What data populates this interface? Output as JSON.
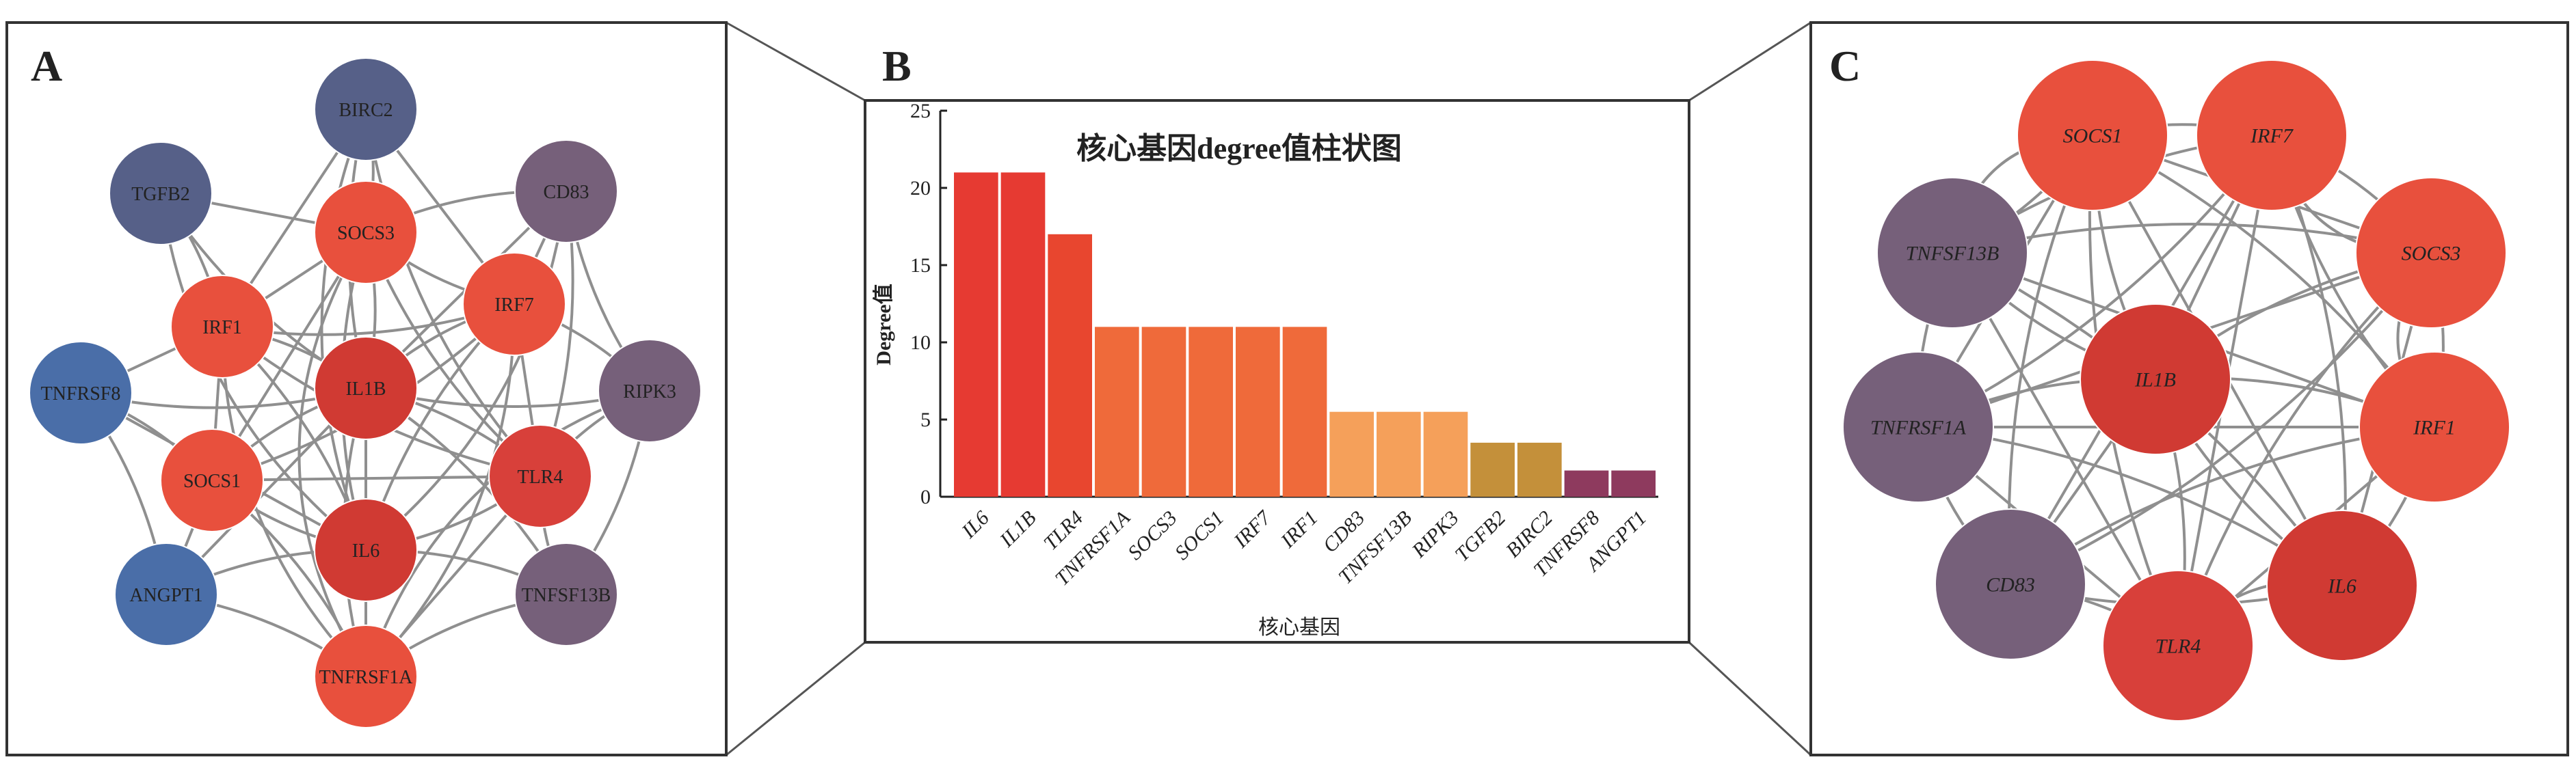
{
  "panels": {
    "A": {
      "label": "A",
      "nodes": [
        {
          "id": "BIRC2",
          "label": "BIRC2",
          "color": "#566088"
        },
        {
          "id": "TGFB2",
          "label": "TGFB2",
          "color": "#566088"
        },
        {
          "id": "CD83",
          "label": "CD83",
          "color": "#76607a"
        },
        {
          "id": "SOCS3",
          "label": "SOCS3",
          "color": "#e8503d"
        },
        {
          "id": "IRF1",
          "label": "IRF1",
          "color": "#e8503d"
        },
        {
          "id": "IRF7",
          "label": "IRF7",
          "color": "#e8503d"
        },
        {
          "id": "IL1B",
          "label": "IL1B",
          "color": "#d03a33"
        },
        {
          "id": "RIPK3",
          "label": "RIPK3",
          "color": "#76607a"
        },
        {
          "id": "TNFRSF8",
          "label": "TNFRSF8",
          "color": "#4a6ea8"
        },
        {
          "id": "SOCS1",
          "label": "SOCS1",
          "color": "#e8503d"
        },
        {
          "id": "TLR4",
          "label": "TLR4",
          "color": "#d8403a"
        },
        {
          "id": "IL6",
          "label": "IL6",
          "color": "#d03a33"
        },
        {
          "id": "ANGPT1",
          "label": "ANGPT1",
          "color": "#4a6ea8"
        },
        {
          "id": "TNFSF13B",
          "label": "TNFSF13B",
          "color": "#76607a"
        },
        {
          "id": "TNFRSF1A",
          "label": "TNFRSF1A",
          "color": "#e8503d"
        }
      ]
    },
    "B": {
      "label": "B"
    },
    "C": {
      "label": "C",
      "nodes": [
        {
          "id": "SOCS1",
          "label": "SOCS1",
          "color": "#e8503d"
        },
        {
          "id": "IRF7",
          "label": "IRF7",
          "color": "#e8503d"
        },
        {
          "id": "TNFSF13B",
          "label": "TNFSF13B",
          "color": "#76607a"
        },
        {
          "id": "SOCS3",
          "label": "SOCS3",
          "color": "#e8503d"
        },
        {
          "id": "IL1B",
          "label": "IL1B",
          "color": "#d03a33"
        },
        {
          "id": "TNFRSF1A",
          "label": "TNFRSF1A",
          "color": "#76607a"
        },
        {
          "id": "IRF1",
          "label": "IRF1",
          "color": "#e8503d"
        },
        {
          "id": "CD83",
          "label": "CD83",
          "color": "#76607a"
        },
        {
          "id": "IL6",
          "label": "IL6",
          "color": "#d03a33"
        },
        {
          "id": "TLR4",
          "label": "TLR4",
          "color": "#d8403a"
        }
      ]
    }
  },
  "chart_data": {
    "type": "bar",
    "title": "核心基因degree值柱状图",
    "xlabel": "核心基因",
    "ylabel": "Degree值",
    "ylim": [
      0,
      25
    ],
    "yticks": [
      0,
      5,
      10,
      15,
      20,
      25
    ],
    "categories": [
      "IL6",
      "IL1B",
      "TLR4",
      "TNFRSF1A",
      "SOCS3",
      "SOCS1",
      "IRF7",
      "IRF1",
      "CD83",
      "TNFSF13B",
      "RIPK3",
      "TGFB2",
      "BIRC2",
      "TNFRSF8",
      "ANGPT1"
    ],
    "values": [
      21,
      21,
      17,
      11,
      11,
      11,
      11,
      11,
      5.5,
      5.5,
      5.5,
      3.5,
      3.5,
      1.7,
      1.7
    ],
    "colors": [
      "#e63a32",
      "#e63a32",
      "#e8462f",
      "#ef6a3a",
      "#ef6a3a",
      "#ef6a3a",
      "#ef6a3a",
      "#ef6a3a",
      "#f5a05a",
      "#f5a05a",
      "#f5a05a",
      "#c4903a",
      "#c4903a",
      "#8e3a5e",
      "#8e3a5e"
    ],
    "grid": false,
    "legend": "none"
  }
}
